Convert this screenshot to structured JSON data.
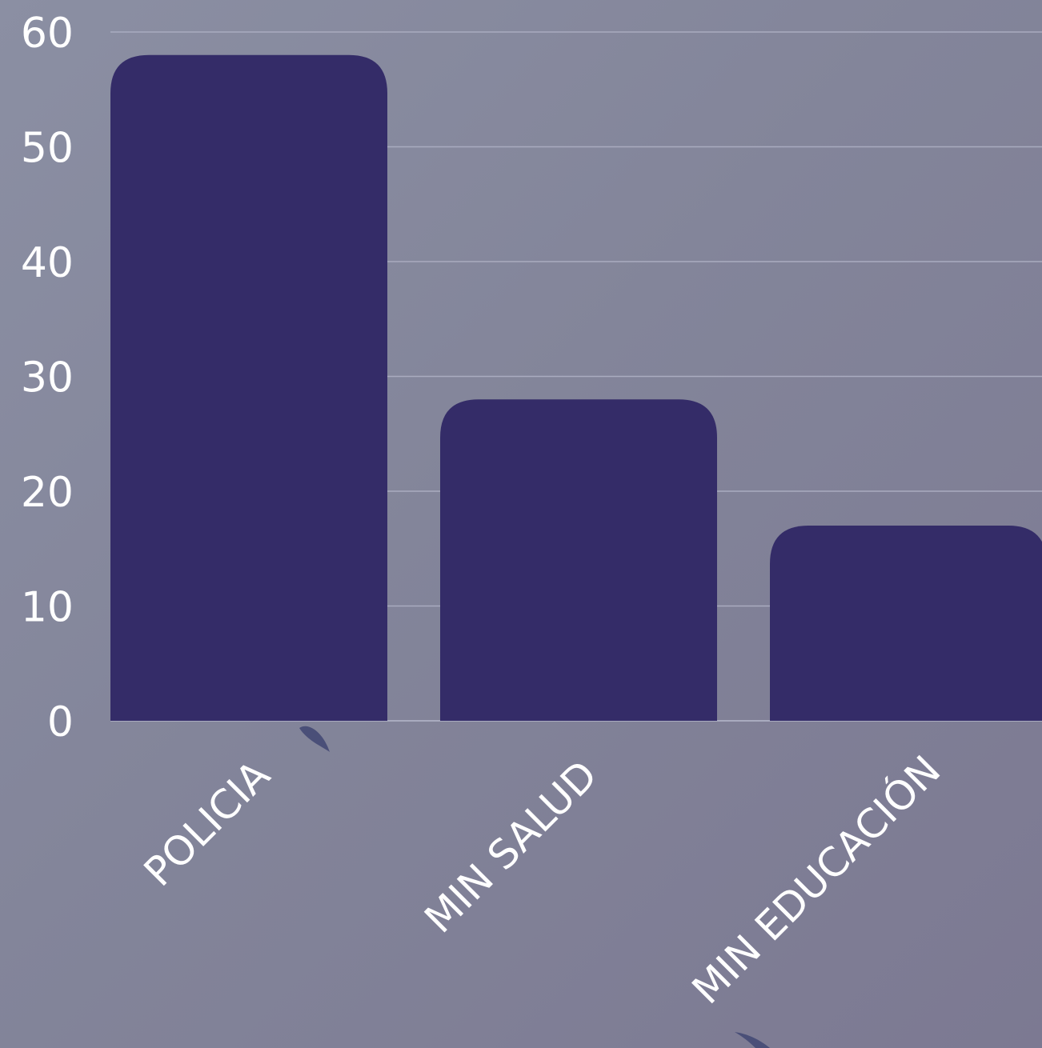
{
  "chart_data": {
    "type": "bar",
    "categories": [
      "POLICIA",
      "MIN SALUD",
      "MIN EDUCACIÓN"
    ],
    "values": [
      58,
      28,
      17
    ],
    "title": "",
    "xlabel": "",
    "ylabel": "",
    "ylim": [
      0,
      60
    ],
    "yticks": [
      "0",
      "10",
      "20",
      "30",
      "40",
      "50",
      "60"
    ],
    "grid": true,
    "legend": "none",
    "colors": {
      "bar": "#342c68",
      "gridline": "#a9abbf",
      "text": "#ffffff",
      "decor": "#4a4f78"
    }
  }
}
